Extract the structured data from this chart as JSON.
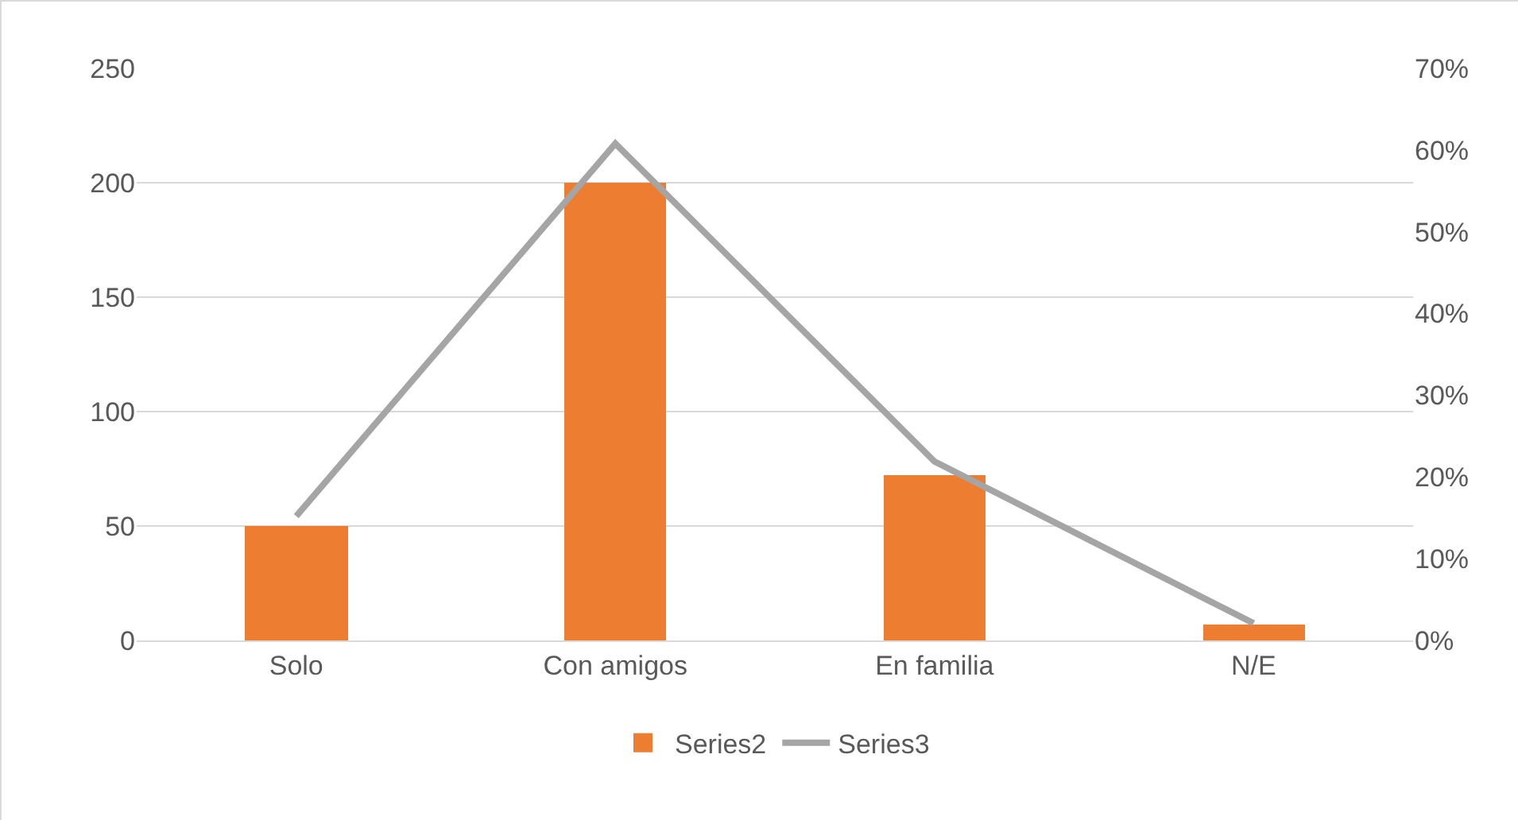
{
  "chart_data": {
    "type": "bar",
    "categories": [
      "Solo",
      "Con amigos",
      "En familia",
      "N/E"
    ],
    "series": [
      {
        "name": "Series2",
        "color": "#ed7d31",
        "values": [
          50,
          200,
          72,
          7
        ]
      },
      {
        "name": "Series3",
        "type": "line",
        "axis": "y2",
        "color": "#a5a5a5",
        "values": [
          15.2,
          60.8,
          21.9,
          2.1
        ]
      }
    ],
    "ylim": [
      0,
      250
    ],
    "yticks": [
      0,
      50,
      100,
      150,
      200,
      250
    ],
    "y2lim": [
      0,
      70
    ],
    "y2ticks": [
      {
        "value": 0,
        "label": "0%"
      },
      {
        "value": 10,
        "label": "10%"
      },
      {
        "value": 20,
        "label": "20%"
      },
      {
        "value": 30,
        "label": "30%"
      },
      {
        "value": 40,
        "label": "40%"
      },
      {
        "value": 50,
        "label": "50%"
      },
      {
        "value": 60,
        "label": "60%"
      },
      {
        "value": 70,
        "label": "70%"
      }
    ],
    "grid": "y",
    "legend": "bottom",
    "marker": "none",
    "line_style": "solid"
  }
}
